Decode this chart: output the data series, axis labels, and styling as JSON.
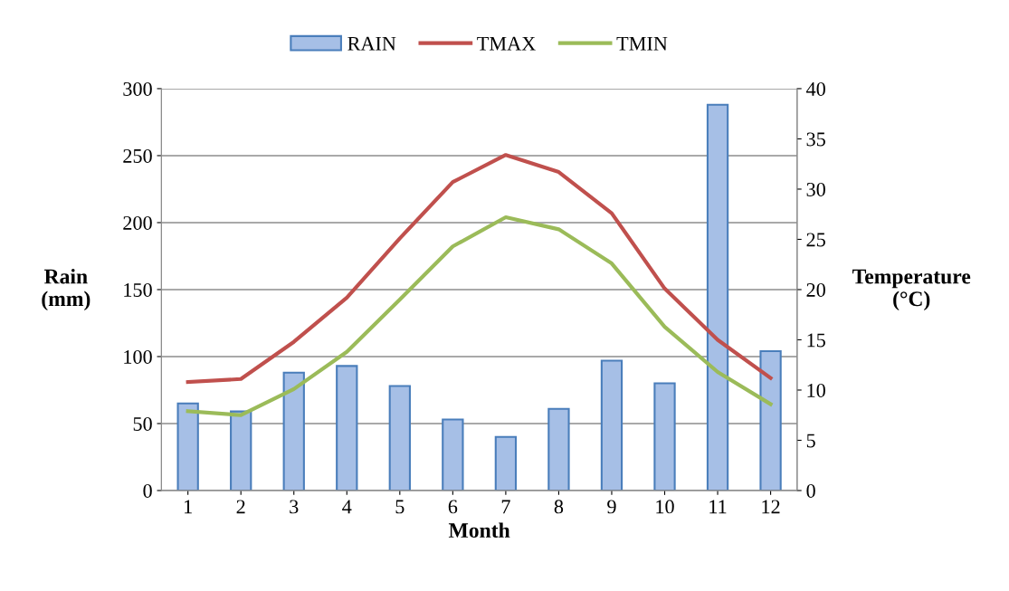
{
  "chart_data": {
    "type": "bar",
    "categories": [
      "1",
      "2",
      "3",
      "4",
      "5",
      "6",
      "7",
      "8",
      "9",
      "10",
      "11",
      "12"
    ],
    "xlabel": "Month",
    "ylabel": "Rain\n(mm)",
    "y2label": "Temperature\n(°C)",
    "ylim": [
      0,
      300
    ],
    "yticks": [
      0,
      50,
      100,
      150,
      200,
      250,
      300
    ],
    "y2lim": [
      0,
      40
    ],
    "y2ticks": [
      0,
      5,
      10,
      15,
      20,
      25,
      30,
      35,
      40
    ],
    "grid": "y",
    "legend": "top",
    "series": [
      {
        "name": "RAIN",
        "color": "#a6bfe6",
        "values": [
          65,
          59,
          88,
          93,
          78,
          53,
          40,
          61,
          97,
          80,
          288,
          104
        ]
      },
      {
        "name": "TMAX",
        "type": "line",
        "axis": "y2",
        "color": "#c0504d",
        "values": [
          10.8,
          11.1,
          14.8,
          19.2,
          25.1,
          30.7,
          33.4,
          31.7,
          27.6,
          20.1,
          15.0,
          11.2
        ]
      },
      {
        "name": "TMIN",
        "type": "line",
        "axis": "y2",
        "color": "#9bbb59",
        "values": [
          7.9,
          7.5,
          10.1,
          13.8,
          19.0,
          24.3,
          27.2,
          26.0,
          22.6,
          16.3,
          11.8,
          8.6
        ]
      }
    ]
  }
}
